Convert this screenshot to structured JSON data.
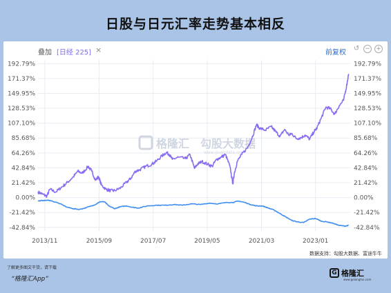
{
  "title": "日股与日元汇率走势基本相反",
  "toolbar": {
    "overlay_label": "叠加",
    "series_tag": "[日经 225]",
    "close_symbol": "×",
    "adjust_label": "前复权",
    "reset_icon": "reset-icon",
    "zoom_out_icon": "zoom-out-icon",
    "zoom_in_icon": "zoom-in-icon"
  },
  "watermark": {
    "brand": "格隆汇",
    "brand2": "勾股大数据",
    "site": "www.gugudata.com"
  },
  "source": "数据支持：勾股大数据、富途牛牛",
  "footer": {
    "line1": "了解更多图文干货，请下载",
    "line2": "“格隆汇App”"
  },
  "logo": {
    "text": "格隆汇",
    "sub": "www.gelonghui.com"
  },
  "colors": {
    "background": "#a9c4e7",
    "nikkei": "#8a6cf2",
    "yen": "#3d8ef0",
    "grid": "#e8ecf2"
  },
  "chart_data": {
    "type": "line",
    "y_tick_labels": [
      "192.79%",
      "171.37%",
      "149.95%",
      "128.53%",
      "107.10%",
      "85.68%",
      "64.26%",
      "42.84%",
      "21.42%",
      "0.00%",
      "-21.42%",
      "-42.84%"
    ],
    "y_ticks": [
      192.79,
      171.37,
      149.95,
      128.53,
      107.1,
      85.68,
      64.26,
      42.84,
      21.42,
      0.0,
      -21.42,
      -42.84
    ],
    "ylim": [
      -48,
      198
    ],
    "xlim": [
      2013.6,
      2024.2
    ],
    "x_ticks": [
      2013.83,
      2015.67,
      2017.5,
      2019.33,
      2021.17,
      2023.0
    ],
    "x_tick_labels": [
      "2013/11",
      "2015/09",
      "2017/07",
      "2019/05",
      "2021/03",
      "2023/01"
    ],
    "grid": true,
    "series": [
      {
        "name": "日经 225",
        "color": "#8a6cf2",
        "x": [
          2013.6,
          2013.75,
          2013.9,
          2014.0,
          2014.2,
          2014.4,
          2014.6,
          2014.8,
          2014.95,
          2015.1,
          2015.3,
          2015.42,
          2015.55,
          2015.65,
          2015.75,
          2015.9,
          2016.05,
          2016.2,
          2016.4,
          2016.6,
          2016.75,
          2016.9,
          2017.05,
          2017.25,
          2017.45,
          2017.6,
          2017.8,
          2017.95,
          2018.05,
          2018.15,
          2018.35,
          2018.6,
          2018.75,
          2018.9,
          2019.0,
          2019.15,
          2019.35,
          2019.5,
          2019.65,
          2019.8,
          2019.95,
          2020.1,
          2020.2,
          2020.25,
          2020.35,
          2020.5,
          2020.7,
          2020.85,
          2021.0,
          2021.1,
          2021.3,
          2021.5,
          2021.65,
          2021.8,
          2021.95,
          2022.1,
          2022.2,
          2022.35,
          2022.5,
          2022.65,
          2022.8,
          2022.95,
          2023.05,
          2023.2,
          2023.35,
          2023.5,
          2023.65,
          2023.8,
          2023.95,
          2024.05,
          2024.12
        ],
        "values": [
          8,
          5,
          2,
          12,
          8,
          15,
          22,
          30,
          38,
          35,
          45,
          38,
          25,
          30,
          18,
          12,
          10,
          10,
          14,
          22,
          28,
          38,
          40,
          45,
          48,
          52,
          60,
          65,
          62,
          55,
          58,
          56,
          62,
          42,
          48,
          52,
          48,
          45,
          55,
          58,
          62,
          45,
          20,
          35,
          52,
          62,
          72,
          86,
          105,
          100,
          97,
          102,
          95,
          88,
          98,
          90,
          92,
          85,
          86,
          90,
          84,
          95,
          100,
          115,
          130,
          128,
          120,
          132,
          140,
          160,
          178
        ]
      },
      {
        "name": "日元汇率",
        "color": "#3d8ef0",
        "x": [
          2013.6,
          2013.8,
          2014.0,
          2014.3,
          2014.6,
          2014.8,
          2015.0,
          2015.2,
          2015.4,
          2015.55,
          2015.7,
          2015.85,
          2016.0,
          2016.2,
          2016.4,
          2016.6,
          2016.8,
          2017.0,
          2017.3,
          2017.6,
          2017.9,
          2018.2,
          2018.5,
          2018.8,
          2019.1,
          2019.4,
          2019.7,
          2020.0,
          2020.2,
          2020.4,
          2020.6,
          2020.8,
          2021.0,
          2021.2,
          2021.4,
          2021.6,
          2021.8,
          2022.0,
          2022.2,
          2022.4,
          2022.6,
          2022.8,
          2023.0,
          2023.2,
          2023.4,
          2023.6,
          2023.8,
          2024.0,
          2024.12
        ],
        "values": [
          -5,
          -4,
          -4,
          -8,
          -14,
          -16,
          -17,
          -15,
          -12,
          -10,
          -6,
          -6,
          -12,
          -16,
          -13,
          -12,
          -14,
          -15,
          -12,
          -11,
          -11,
          -10,
          -11,
          -9,
          -10,
          -8,
          -9,
          -7,
          -7,
          -5,
          -7,
          -10,
          -12,
          -12,
          -15,
          -18,
          -23,
          -28,
          -33,
          -35,
          -36,
          -31,
          -30,
          -34,
          -35,
          -37,
          -40,
          -41,
          -40
        ]
      }
    ]
  }
}
